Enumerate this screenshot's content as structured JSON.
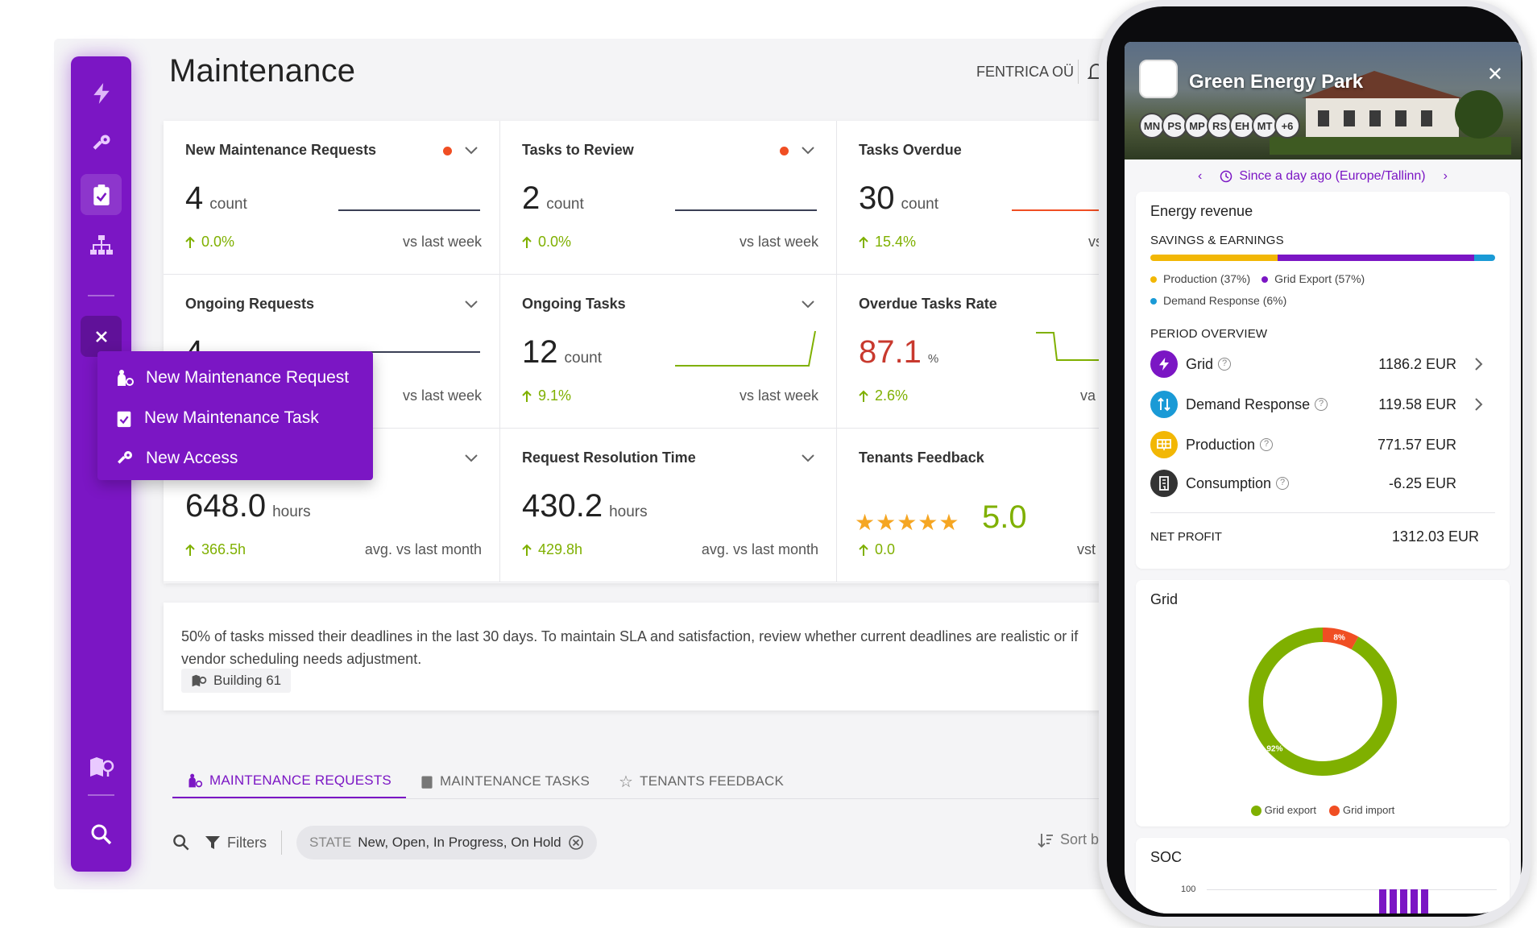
{
  "header": {
    "title": "Maintenance",
    "org": "FENTRICA OÜ"
  },
  "rail": {
    "icons": [
      "bolt-icon",
      "key-icon",
      "clipboard-check-icon",
      "network-icon",
      "close-icon",
      "map-pin-icon",
      "search-icon"
    ]
  },
  "quick_menu": {
    "items": [
      {
        "label": "New Maintenance Request",
        "icon": "person-request-icon"
      },
      {
        "label": "New Maintenance Task",
        "icon": "clipboard-icon"
      },
      {
        "label": "New Access",
        "icon": "key-icon"
      }
    ]
  },
  "cards": {
    "new_requests": {
      "title": "New Maintenance Requests",
      "value": "4",
      "unit": "count",
      "trend": "0.0%",
      "compare": "vs last week"
    },
    "to_review": {
      "title": "Tasks to Review",
      "value": "2",
      "unit": "count",
      "trend": "0.0%",
      "compare": "vs last week"
    },
    "overdue": {
      "title": "Tasks Overdue",
      "value": "30",
      "unit": "count",
      "trend": "15.4%",
      "compare": "vs la"
    },
    "ongoing_requests": {
      "title": "Ongoing Requests",
      "value": "4",
      "unit": "count",
      "trend": "",
      "compare": "vs last week"
    },
    "ongoing_tasks": {
      "title": "Ongoing Tasks",
      "value": "12",
      "unit": "count",
      "trend": "9.1%",
      "compare": "vs last week"
    },
    "overdue_rate": {
      "title": "Overdue Tasks Rate",
      "value": "87.1",
      "unit": "%",
      "trend": "2.6%",
      "compare": "va las"
    },
    "avg_time": {
      "title": "",
      "value": "648.0",
      "unit": "hours",
      "trend": "366.5h",
      "compare": "avg. vs last month"
    },
    "resolution": {
      "title": "Request Resolution Time",
      "value": "430.2",
      "unit": "hours",
      "trend": "429.8h",
      "compare": "avg. vs last month"
    },
    "feedback": {
      "title": "Tenants Feedback",
      "value": "5.0",
      "stars": 5,
      "trend": "0.0",
      "compare": "vst las"
    }
  },
  "insight": {
    "text": "50% of tasks missed their deadlines in the last 30 days. To maintain SLA and satisfaction, review whether current deadlines are realistic or if vendor scheduling needs adjustment.",
    "chip": "Building 61"
  },
  "tabs": [
    {
      "label": "MAINTENANCE REQUESTS",
      "active": true
    },
    {
      "label": "MAINTENANCE TASKS",
      "active": false
    },
    {
      "label": "TENANTS FEEDBACK",
      "active": false
    }
  ],
  "filters": {
    "label": "Filters",
    "state_key": "STATE",
    "state_value": "New, Open, In Progress, On Hold",
    "sort": "Sort b"
  },
  "phone": {
    "site_title": "Green Energy Park",
    "avatars": [
      "MN",
      "PS",
      "MP",
      "RS",
      "EH",
      "MT",
      "+6"
    ],
    "period": "Since a day ago (Europe/Tallinn)",
    "energy_revenue": {
      "title": "Energy revenue",
      "savings_label": "SAVINGS & EARNINGS",
      "shares": {
        "production": 37,
        "grid_export": 57,
        "demand_response": 6
      },
      "legend": {
        "production": "Production (37%)",
        "grid_export": "Grid Export (57%)",
        "demand_response": "Demand Response (6%)"
      },
      "period_label": "PERIOD OVERVIEW",
      "rows": [
        {
          "label": "Grid",
          "amount": "1186.2 EUR"
        },
        {
          "label": "Demand Response",
          "amount": "119.58 EUR"
        },
        {
          "label": "Production",
          "amount": "771.57 EUR"
        },
        {
          "label": "Consumption",
          "amount": "-6.25 EUR"
        }
      ],
      "net_label": "NET PROFIT",
      "net_value": "1312.03 EUR"
    },
    "grid": {
      "title": "Grid",
      "chart_data": {
        "type": "pie",
        "title": "Grid",
        "categories": [
          "Grid export",
          "Grid import"
        ],
        "values": [
          92,
          8
        ],
        "labels": [
          "92%",
          "8%"
        ]
      },
      "legend": {
        "export": "Grid export",
        "import": "Grid import"
      }
    },
    "soc": {
      "title": "SOC",
      "tick": "100"
    }
  },
  "colors": {
    "brand": "#7b16c4",
    "green": "#7fb000",
    "red": "#f04e23",
    "orange": "#f2b705",
    "blue": "#1a9ad6"
  }
}
